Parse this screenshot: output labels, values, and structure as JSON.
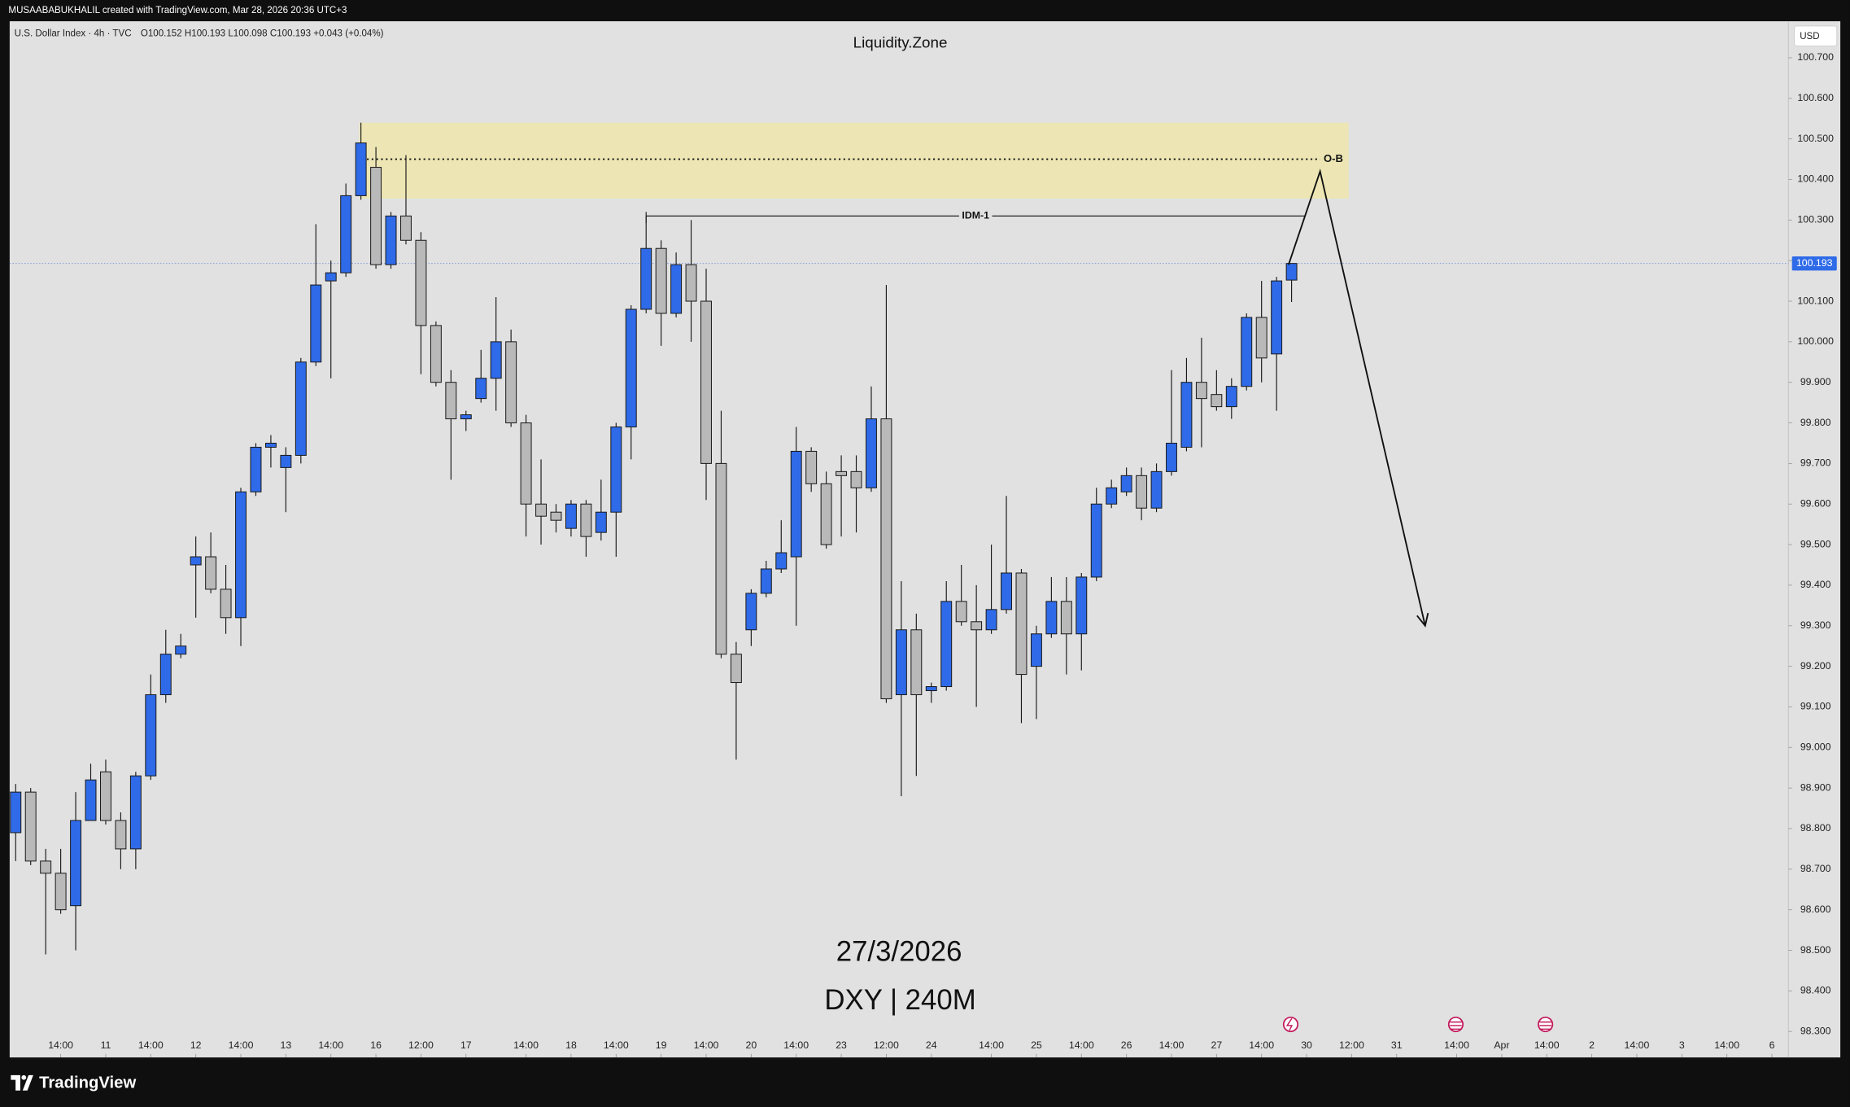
{
  "header": {
    "credit": "MUSAABABUKHALIL created with TradingView.com, Mar 28, 2026 20:36 UTC+3",
    "symbol": "U.S. Dollar Index · 4h · TVC",
    "ohlc": "O100.152 H100.193 L100.098 C100.193 +0.043 (+0.04%)",
    "currency": "USD",
    "brand": "TradingView"
  },
  "chart_data": {
    "type": "candlestick",
    "title": "Liquidity.Zone",
    "date_label": "27/3/2026",
    "symbol_label": "DXY | 240M",
    "up_color": "#2f6be8",
    "down_color": "#b9b9b9",
    "open": [
      98.79,
      98.89,
      98.72,
      98.69,
      98.61,
      98.82,
      98.94,
      98.82,
      98.75,
      98.93,
      99.13,
      99.23,
      99.45,
      99.47,
      99.39,
      99.32,
      99.63,
      99.74,
      99.69,
      99.72,
      99.95,
      100.15,
      100.17,
      100.36,
      100.43,
      100.19,
      100.31,
      100.25,
      100.04,
      99.9,
      99.81,
      99.86,
      99.91,
      100.0,
      99.8,
      99.6,
      99.58,
      99.54,
      99.6,
      99.53,
      99.58,
      99.79,
      100.08,
      100.23,
      100.07,
      100.19,
      100.1,
      99.7,
      99.23,
      99.29,
      99.38,
      99.44,
      99.47,
      99.73,
      99.65,
      99.68,
      99.68,
      99.64,
      99.81,
      99.13,
      99.29,
      99.14,
      99.15,
      99.36,
      99.31,
      99.29,
      99.34,
      99.43,
      99.2,
      99.28,
      99.36,
      99.28,
      99.42,
      99.6,
      99.63,
      99.67,
      99.59,
      99.68,
      99.74,
      99.9,
      99.87,
      99.84,
      99.89,
      100.06,
      99.97,
      100.152
    ],
    "high": [
      98.91,
      98.9,
      98.75,
      98.75,
      98.89,
      98.96,
      98.97,
      98.84,
      98.94,
      99.18,
      99.29,
      99.28,
      99.52,
      99.53,
      99.45,
      99.64,
      99.75,
      99.77,
      99.74,
      99.96,
      100.29,
      100.2,
      100.39,
      100.54,
      100.48,
      100.32,
      100.46,
      100.27,
      100.05,
      99.93,
      99.83,
      99.98,
      100.11,
      100.03,
      99.82,
      99.71,
      99.6,
      99.61,
      99.61,
      99.66,
      99.8,
      100.09,
      100.32,
      100.25,
      100.22,
      100.3,
      100.18,
      99.83,
      99.26,
      99.39,
      99.46,
      99.56,
      99.79,
      99.74,
      99.68,
      99.72,
      99.72,
      99.89,
      100.14,
      99.41,
      99.33,
      99.16,
      99.41,
      99.45,
      99.4,
      99.5,
      99.62,
      99.44,
      99.3,
      99.42,
      99.42,
      99.43,
      99.64,
      99.66,
      99.69,
      99.69,
      99.7,
      99.93,
      99.96,
      100.01,
      99.93,
      99.91,
      100.07,
      100.15,
      100.16,
      100.193
    ],
    "low": [
      98.72,
      98.71,
      98.49,
      98.59,
      98.5,
      98.82,
      98.81,
      98.7,
      98.7,
      98.92,
      99.11,
      99.22,
      99.32,
      99.38,
      99.28,
      99.25,
      99.62,
      99.69,
      99.58,
      99.7,
      99.94,
      99.91,
      100.16,
      100.35,
      100.18,
      100.18,
      100.24,
      99.92,
      99.89,
      99.66,
      99.78,
      99.85,
      99.83,
      99.79,
      99.52,
      99.5,
      99.53,
      99.52,
      99.47,
      99.51,
      99.47,
      99.71,
      100.07,
      99.99,
      100.06,
      100.0,
      99.61,
      99.22,
      98.97,
      99.25,
      99.37,
      99.43,
      99.3,
      99.63,
      99.49,
      99.52,
      99.53,
      99.63,
      99.11,
      98.88,
      98.93,
      99.11,
      99.14,
      99.3,
      99.1,
      99.28,
      99.33,
      99.06,
      99.07,
      99.27,
      99.18,
      99.19,
      99.41,
      99.59,
      99.62,
      99.56,
      99.58,
      99.67,
      99.73,
      99.74,
      99.83,
      99.81,
      99.88,
      99.9,
      99.83,
      100.098
    ],
    "close": [
      98.89,
      98.72,
      98.69,
      98.6,
      98.82,
      98.92,
      98.82,
      98.75,
      98.93,
      99.13,
      99.23,
      99.25,
      99.47,
      99.39,
      99.32,
      99.63,
      99.74,
      99.75,
      99.72,
      99.95,
      100.14,
      100.17,
      100.36,
      100.49,
      100.19,
      100.31,
      100.25,
      100.04,
      99.9,
      99.81,
      99.82,
      99.91,
      100.0,
      99.8,
      99.6,
      99.57,
      99.56,
      99.6,
      99.52,
      99.58,
      99.79,
      100.08,
      100.23,
      100.07,
      100.19,
      100.1,
      99.7,
      99.23,
      99.16,
      99.38,
      99.44,
      99.48,
      99.73,
      99.65,
      99.5,
      99.67,
      99.64,
      99.81,
      99.12,
      99.29,
      99.13,
      99.15,
      99.36,
      99.31,
      99.29,
      99.34,
      99.43,
      99.18,
      99.28,
      99.36,
      99.28,
      99.42,
      99.6,
      99.64,
      99.67,
      99.59,
      99.68,
      99.75,
      99.9,
      99.86,
      99.84,
      99.89,
      100.06,
      99.96,
      100.15,
      100.193
    ],
    "last_price": 100.193,
    "xlim": [
      -0.4,
      118.1
    ],
    "xticks": [
      {
        "value": 3,
        "label": "14:00"
      },
      {
        "value": 6,
        "label": "11"
      },
      {
        "value": 9,
        "label": "14:00"
      },
      {
        "value": 12,
        "label": "12"
      },
      {
        "value": 15,
        "label": "14:00"
      },
      {
        "value": 18,
        "label": "13"
      },
      {
        "value": 21,
        "label": "14:00"
      },
      {
        "value": 24,
        "label": "16"
      },
      {
        "value": 27,
        "label": "12:00"
      },
      {
        "value": 30,
        "label": "17"
      },
      {
        "value": 34,
        "label": "14:00"
      },
      {
        "value": 37,
        "label": "18"
      },
      {
        "value": 40,
        "label": "14:00"
      },
      {
        "value": 43,
        "label": "19"
      },
      {
        "value": 46,
        "label": "14:00"
      },
      {
        "value": 49,
        "label": "20"
      },
      {
        "value": 52,
        "label": "14:00"
      },
      {
        "value": 55,
        "label": "23"
      },
      {
        "value": 58,
        "label": "12:00"
      },
      {
        "value": 61,
        "label": "24"
      },
      {
        "value": 65,
        "label": "14:00"
      },
      {
        "value": 68,
        "label": "25"
      },
      {
        "value": 71,
        "label": "14:00"
      },
      {
        "value": 74,
        "label": "26"
      },
      {
        "value": 77,
        "label": "14:00"
      },
      {
        "value": 80,
        "label": "27"
      },
      {
        "value": 83,
        "label": "14:00"
      },
      {
        "value": 86,
        "label": "30"
      },
      {
        "value": 89,
        "label": "12:00"
      },
      {
        "value": 92,
        "label": "31"
      },
      {
        "value": 96,
        "label": "14:00"
      },
      {
        "value": 99,
        "label": "Apr"
      },
      {
        "value": 102,
        "label": "14:00"
      },
      {
        "value": 105,
        "label": "2"
      },
      {
        "value": 108,
        "label": "14:00"
      },
      {
        "value": 111,
        "label": "3"
      },
      {
        "value": 114,
        "label": "14:00"
      },
      {
        "value": 117,
        "label": "6"
      }
    ],
    "ylim": [
      98.236,
      100.79
    ],
    "yticks": [
      {
        "value": 98.3,
        "label": "98.300"
      },
      {
        "value": 98.4,
        "label": "98.400"
      },
      {
        "value": 98.5,
        "label": "98.500"
      },
      {
        "value": 98.6,
        "label": "98.600"
      },
      {
        "value": 98.7,
        "label": "98.700"
      },
      {
        "value": 98.8,
        "label": "98.800"
      },
      {
        "value": 98.9,
        "label": "98.900"
      },
      {
        "value": 99.0,
        "label": "99.000"
      },
      {
        "value": 99.1,
        "label": "99.100"
      },
      {
        "value": 99.2,
        "label": "99.200"
      },
      {
        "value": 99.3,
        "label": "99.300"
      },
      {
        "value": 99.4,
        "label": "99.400"
      },
      {
        "value": 99.5,
        "label": "99.500"
      },
      {
        "value": 99.6,
        "label": "99.600"
      },
      {
        "value": 99.7,
        "label": "99.700"
      },
      {
        "value": 99.8,
        "label": "99.800"
      },
      {
        "value": 99.9,
        "label": "99.900"
      },
      {
        "value": 100.0,
        "label": "100.000"
      },
      {
        "value": 100.1,
        "label": "100.100"
      },
      {
        "value": 100.2,
        "label": "100.200"
      },
      {
        "value": 100.3,
        "label": "100.300"
      },
      {
        "value": 100.4,
        "label": "100.400"
      },
      {
        "value": 100.5,
        "label": "100.500"
      },
      {
        "value": 100.6,
        "label": "100.600"
      },
      {
        "value": 100.7,
        "label": "100.700"
      }
    ],
    "annotations": [
      {
        "type": "zone",
        "x": [
          22.9,
          88.8
        ],
        "y": [
          100.353,
          100.54
        ],
        "color": "#ede6b4"
      },
      {
        "type": "dotted",
        "label": "O-B",
        "x": [
          23.4,
          86.9
        ],
        "y": 100.45
      },
      {
        "type": "line",
        "label": "IDM-1",
        "x": [
          42,
          85.9
        ],
        "y": 100.31
      },
      {
        "type": "arrow",
        "x": [
          84.8,
          86.9,
          93.9
        ],
        "y": [
          100.19,
          100.42,
          99.3
        ]
      }
    ]
  }
}
